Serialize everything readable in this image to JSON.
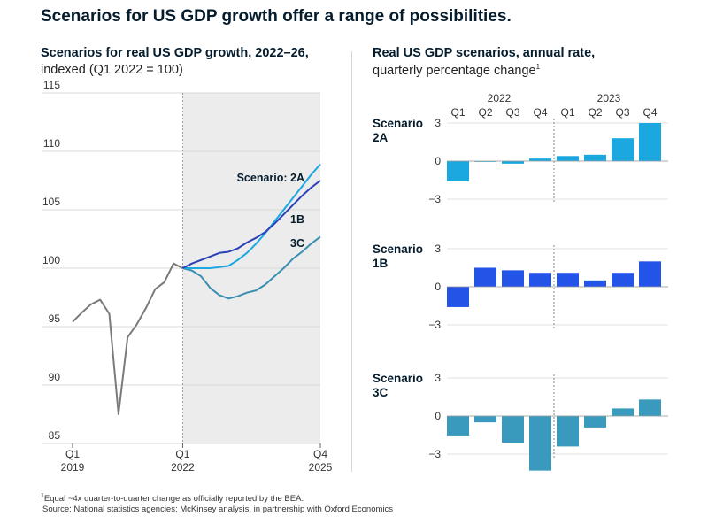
{
  "title": "Scenarios for US GDP growth offer a range of possibilities.",
  "left_panel": {
    "title": "Scenarios for real US GDP growth, 2022–26,",
    "subtitle": "indexed (Q1 2022 = 100)"
  },
  "right_panel": {
    "title": "Real US GDP scenarios, annual rate,",
    "subtitle": "quarterly percentage change",
    "subtitle_marker": "1"
  },
  "footnote": {
    "marker": "1",
    "note": "Equal ~4x quarter-to-quarter change as officially reported by the BEA.",
    "source": "Source: National statistics agencies; McKinsey analysis, in partnership with Oxford Economics"
  },
  "colors": {
    "history": "#7a7a7a",
    "2A": "#1ba8e0",
    "1B": "#2453e8",
    "3C": "#3a9abd",
    "shade": "#ececec",
    "line_2A": "#1ba8e0",
    "line_1B": "#2c3fb8",
    "line_3C": "#3a8fb0"
  },
  "chart_data": [
    {
      "type": "line",
      "title": "Scenarios for real US GDP growth, 2022–26, indexed (Q1 2022 = 100)",
      "ylim": [
        85,
        115
      ],
      "yticks": [
        85,
        90,
        95,
        100,
        105,
        110,
        115
      ],
      "x_ticks": [
        {
          "index": 0,
          "label": "Q1",
          "year": "2019"
        },
        {
          "index": 12,
          "label": "Q1",
          "year": "2022"
        },
        {
          "index": 27,
          "label": "Q4",
          "year": "2025"
        }
      ],
      "projection_start_index": 12,
      "history": {
        "x": [
          0,
          1,
          2,
          3,
          4,
          5,
          6,
          7,
          8,
          9,
          10,
          11,
          12
        ],
        "values": [
          95.4,
          96.2,
          96.9,
          97.3,
          96.1,
          87.5,
          94.1,
          95.2,
          96.6,
          98.2,
          98.8,
          100.4,
          100.0
        ]
      },
      "series": [
        {
          "name": "2A",
          "label": "Scenario: 2A",
          "x": [
            12,
            13,
            14,
            15,
            16,
            17,
            18,
            19,
            20,
            21,
            22,
            23,
            24,
            25,
            26,
            27
          ],
          "values": [
            100.0,
            100.0,
            100.0,
            100.0,
            100.1,
            100.2,
            100.7,
            101.3,
            102.1,
            103.0,
            104.0,
            105.0,
            106.0,
            107.0,
            108.0,
            108.9
          ]
        },
        {
          "name": "1B",
          "label": "1B",
          "x": [
            12,
            13,
            14,
            15,
            16,
            17,
            18,
            19,
            20,
            21,
            22,
            23,
            24,
            25,
            26,
            27
          ],
          "values": [
            100.0,
            100.4,
            100.7,
            101.0,
            101.3,
            101.4,
            101.7,
            102.2,
            102.6,
            103.1,
            103.8,
            104.6,
            105.4,
            106.2,
            106.9,
            107.5
          ]
        },
        {
          "name": "3C",
          "label": "3C",
          "x": [
            12,
            13,
            14,
            15,
            16,
            17,
            18,
            19,
            20,
            21,
            22,
            23,
            24,
            25,
            26,
            27
          ],
          "values": [
            100.0,
            99.8,
            99.3,
            98.3,
            97.7,
            97.4,
            97.6,
            97.9,
            98.1,
            98.6,
            99.3,
            100.0,
            100.8,
            101.4,
            102.1,
            102.7
          ]
        }
      ]
    },
    {
      "type": "bar",
      "title": "Real US GDP scenarios, annual rate, quarterly percentage change",
      "ylim": [
        -3,
        3
      ],
      "yticks": [
        3,
        0,
        -3
      ],
      "year_groups": [
        "2022",
        "2023"
      ],
      "categories": [
        "Q1",
        "Q2",
        "Q3",
        "Q4",
        "Q1",
        "Q2",
        "Q3",
        "Q4"
      ],
      "series": [
        {
          "name": "2A",
          "label_line1": "Scenario",
          "label_line2": "2A",
          "values": [
            -1.6,
            0.0,
            -0.2,
            0.2,
            0.4,
            0.5,
            1.8,
            3.0
          ]
        },
        {
          "name": "1B",
          "label_line1": "Scenario",
          "label_line2": "1B",
          "values": [
            -1.6,
            1.5,
            1.3,
            1.1,
            1.1,
            0.5,
            1.1,
            2.0
          ]
        },
        {
          "name": "3C",
          "label_line1": "Scenario",
          "label_line2": "3C",
          "values": [
            -1.6,
            -0.5,
            -2.1,
            -4.3,
            -2.4,
            -0.9,
            0.6,
            1.3
          ]
        }
      ]
    }
  ]
}
